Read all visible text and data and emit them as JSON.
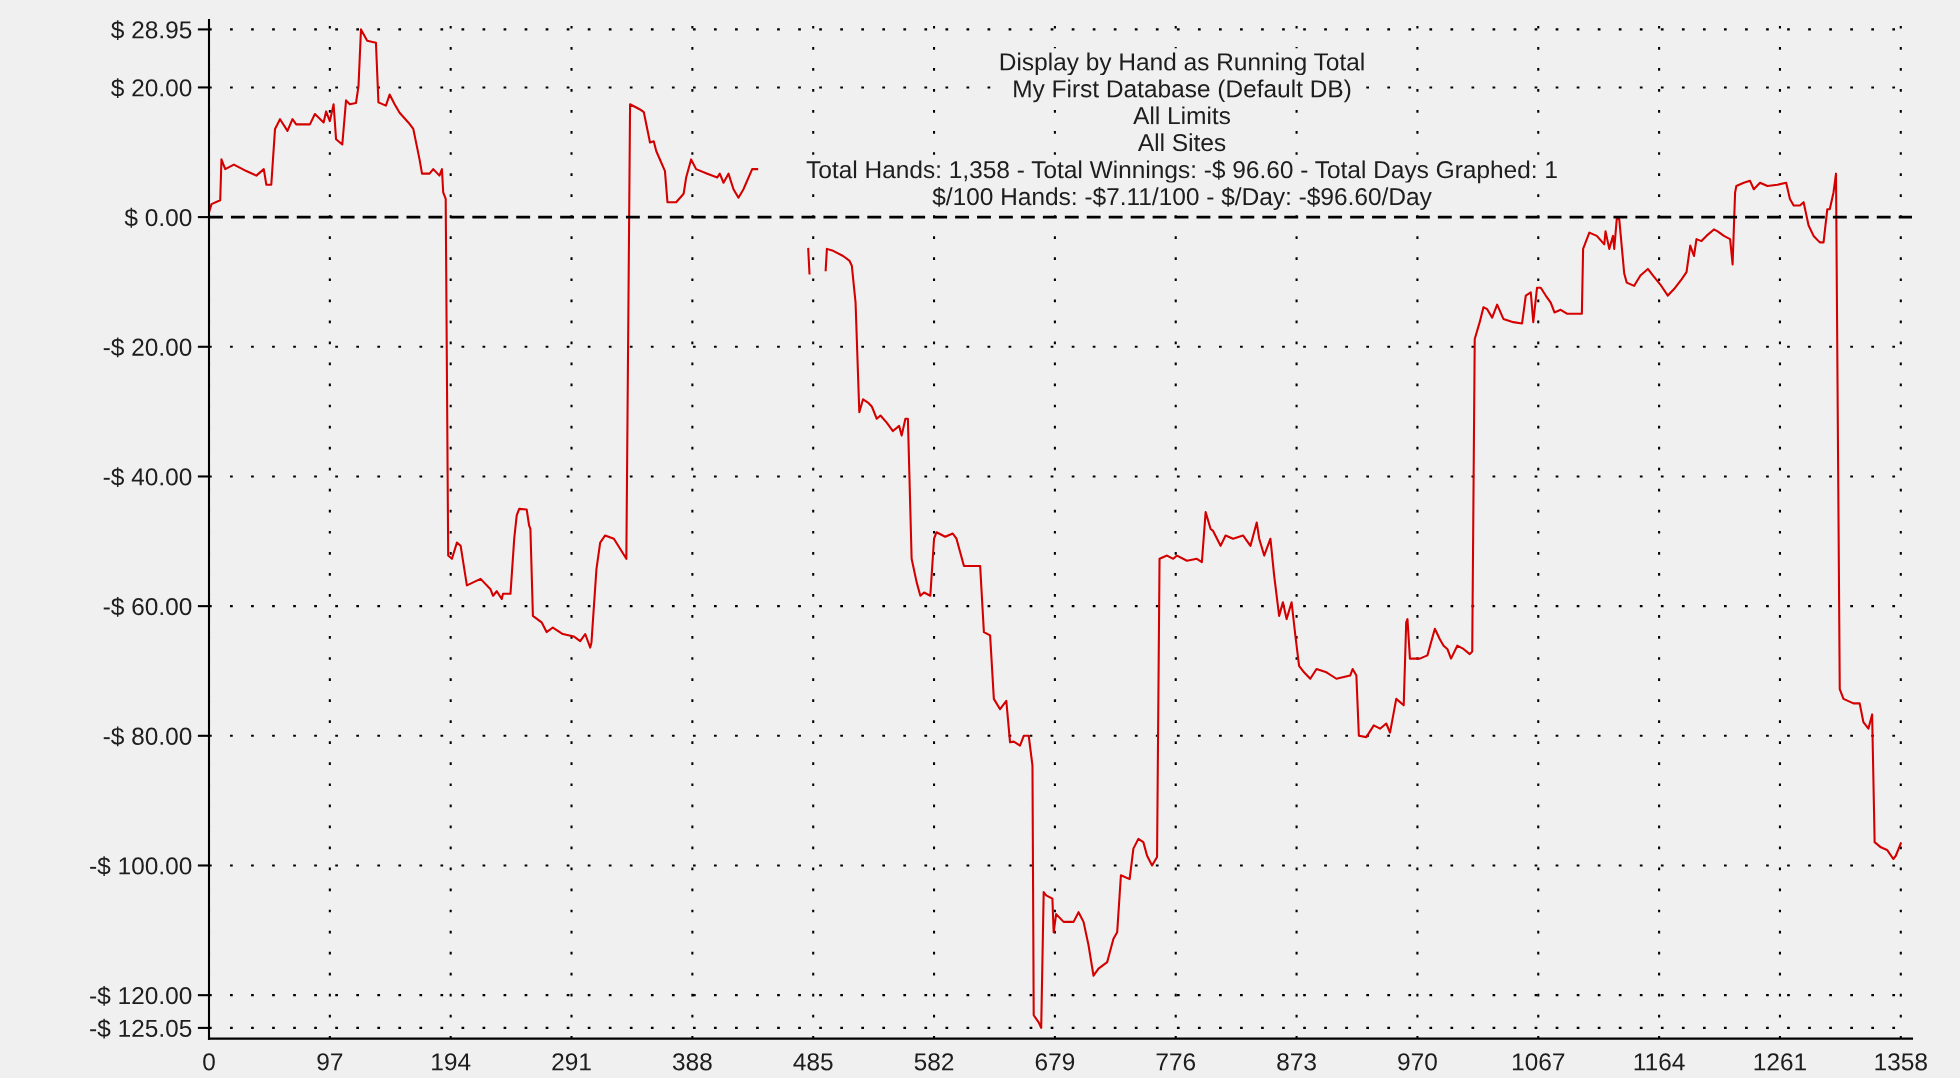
{
  "chart_data": {
    "type": "line",
    "title": "Display by Hand as Running Total",
    "subtitle": "My First Database (Default DB)",
    "annotations": [
      "All Limits",
      "All Sites",
      "Total Hands: 1,358 - Total Winnings: -$ 96.60 - Total Days Graphed: 1",
      "$/100 Hands: -$7.11/100 - $/Day: -$96.60/Day"
    ],
    "x": [
      0,
      2,
      9,
      10,
      13,
      20,
      30,
      38,
      44,
      46,
      50,
      53,
      57,
      63,
      67,
      70,
      81,
      85,
      92,
      94,
      97,
      100,
      102,
      107,
      110,
      113,
      118,
      120,
      122,
      127,
      134,
      136,
      142,
      145,
      149,
      153,
      160,
      164,
      169,
      171,
      177,
      180,
      185,
      187,
      188,
      190,
      192,
      195,
      199,
      202,
      207,
      218,
      226,
      228,
      231,
      235,
      236,
      242,
      245,
      247,
      249,
      255,
      257,
      258,
      260,
      267,
      271,
      276,
      284,
      293,
      298,
      302,
      306,
      307,
      311,
      314,
      318,
      325,
      335,
      338,
      346,
      349,
      354,
      357,
      359,
      366,
      368,
      375,
      381,
      383,
      387,
      391,
      400,
      408,
      410,
      413,
      417,
      421,
      425,
      429,
      436,
      440,
      460,
      481,
      482,
      489,
      495,
      496,
      501,
      509,
      514,
      516,
      519,
      522,
      525,
      529,
      532,
      536,
      539,
      544,
      549,
      554,
      556,
      559,
      561,
      564,
      568,
      571,
      574,
      579,
      582,
      584,
      591,
      597,
      600,
      606,
      619,
      622,
      627,
      630,
      635,
      640,
      643,
      646,
      651,
      654,
      658,
      661,
      662,
      666,
      668,
      670,
      672,
      677,
      678,
      680,
      686,
      694,
      698,
      702,
      706,
      710,
      714,
      721,
      726,
      729,
      732,
      739,
      742,
      746,
      750,
      753,
      757,
      761,
      763,
      769,
      774,
      777,
      785,
      793,
      797,
      800,
      804,
      806,
      812,
      816,
      822,
      830,
      836,
      841,
      843,
      847,
      852,
      855,
      859,
      862,
      865,
      869,
      872,
      875,
      879,
      884,
      889,
      897,
      905,
      916,
      918,
      921,
      923,
      929,
      935,
      940,
      945,
      948,
      953,
      959,
      961,
      962,
      964,
      972,
      978,
      984,
      988,
      991,
      994,
      997,
      1002,
      1007,
      1012,
      1014,
      1016,
      1020,
      1023,
      1026,
      1030,
      1034,
      1039,
      1047,
      1054,
      1057,
      1061,
      1063,
      1066,
      1069,
      1073,
      1077,
      1080,
      1085,
      1090,
      1102,
      1103,
      1108,
      1114,
      1120,
      1121,
      1124,
      1127,
      1128,
      1130,
      1132,
      1136,
      1138,
      1144,
      1149,
      1155,
      1159,
      1165,
      1171,
      1176,
      1182,
      1186,
      1189,
      1192,
      1194,
      1198,
      1202,
      1208,
      1211,
      1216,
      1221,
      1223,
      1225,
      1226,
      1232,
      1237,
      1240,
      1245,
      1251,
      1259,
      1266,
      1269,
      1272,
      1277,
      1280,
      1284,
      1288,
      1293,
      1296,
      1299,
      1301,
      1304,
      1306,
      1309,
      1312,
      1320,
      1325,
      1328,
      1332,
      1335,
      1337,
      1342,
      1347,
      1352,
      1354,
      1358
    ],
    "values": [
      0.7,
      2.0,
      2.6,
      8.9,
      7.4,
      8.1,
      7.1,
      6.4,
      7.4,
      5.0,
      5.0,
      13.6,
      15.1,
      13.3,
      15.1,
      14.3,
      14.3,
      15.9,
      14.6,
      16.3,
      14.8,
      17.4,
      12.0,
      11.2,
      18.0,
      17.4,
      17.6,
      20.2,
      28.95,
      27.2,
      26.9,
      17.7,
      17.2,
      18.9,
      17.4,
      16.1,
      14.6,
      13.6,
      8.9,
      6.7,
      6.7,
      7.4,
      6.4,
      7.4,
      3.8,
      2.8,
      -52.2,
      -52.7,
      -50.2,
      -50.7,
      -56.8,
      -55.8,
      -57.4,
      -58.4,
      -57.7,
      -58.9,
      -58.1,
      -58.1,
      -49.6,
      -46.0,
      -45.0,
      -45.1,
      -47.6,
      -48.1,
      -61.5,
      -62.5,
      -64.0,
      -63.3,
      -64.3,
      -64.7,
      -65.4,
      -64.3,
      -66.4,
      -65.6,
      -54.3,
      -50.2,
      -49.1,
      -49.6,
      -52.7,
      17.4,
      16.6,
      16.2,
      11.5,
      11.7,
      10.2,
      7.1,
      2.3,
      2.3,
      3.6,
      6.1,
      8.9,
      7.4,
      6.7,
      6.1,
      6.7,
      5.3,
      6.7,
      4.3,
      3.0,
      4.3,
      7.4,
      7.4,
      null,
      -4.9,
      -8.7,
      null,
      -8.2,
      -4.9,
      -5.2,
      -6.0,
      -6.7,
      -7.5,
      -13.2,
      -30.1,
      -28.1,
      -28.6,
      -29.2,
      -31.1,
      -30.6,
      -31.7,
      -33.0,
      -32.2,
      -33.7,
      -31.1,
      -31.1,
      -52.7,
      -56.3,
      -58.4,
      -57.9,
      -58.4,
      -49.6,
      -48.6,
      -49.3,
      -48.8,
      -49.6,
      -53.8,
      -53.8,
      -64.0,
      -64.5,
      -74.3,
      -75.9,
      -74.6,
      -81.0,
      -80.9,
      -81.5,
      -80.0,
      -80.0,
      -84.6,
      -123.1,
      -124.2,
      -125.05,
      -104.1,
      -104.6,
      -105.1,
      -110.3,
      -107.5,
      -108.7,
      -108.7,
      -107.2,
      -108.7,
      -112.3,
      -117.0,
      -115.9,
      -114.9,
      -111.3,
      -110.3,
      -101.5,
      -102.1,
      -97.4,
      -95.9,
      -96.4,
      -98.5,
      -100.0,
      -98.7,
      -52.7,
      -52.2,
      -52.7,
      -52.2,
      -53.0,
      -52.7,
      -53.2,
      -45.5,
      -48.1,
      -48.4,
      -50.7,
      -49.1,
      -49.6,
      -49.1,
      -50.7,
      -47.1,
      -49.6,
      -52.2,
      -49.6,
      -55.3,
      -61.5,
      -59.4,
      -62.0,
      -59.4,
      -64.5,
      -69.2,
      -70.2,
      -71.2,
      -69.7,
      -70.2,
      -71.2,
      -70.7,
      -69.7,
      -70.7,
      -80.0,
      -80.2,
      -78.4,
      -78.9,
      -78.1,
      -79.5,
      -74.3,
      -75.3,
      -62.5,
      -62.0,
      -68.1,
      -68.1,
      -67.6,
      -63.5,
      -65.1,
      -66.1,
      -66.6,
      -68.1,
      -66.1,
      -66.6,
      -67.4,
      -67.0,
      -18.8,
      -16.2,
      -13.9,
      -14.2,
      -15.5,
      -13.5,
      -15.7,
      -16.2,
      -16.4,
      -12.1,
      -11.6,
      -16.2,
      -10.9,
      -10.9,
      -12.1,
      -13.2,
      -14.7,
      -14.3,
      -14.9,
      -14.9,
      -4.9,
      -2.4,
      -2.9,
      -4.2,
      -2.2,
      -4.9,
      -2.9,
      -4.9,
      -0.3,
      -0.3,
      -8.7,
      -10.1,
      -10.6,
      -9.0,
      -8.0,
      -9.0,
      -10.4,
      -12.1,
      -11.1,
      -9.6,
      -8.5,
      -4.4,
      -6.0,
      -3.4,
      -3.7,
      -2.9,
      -1.9,
      -2.2,
      -2.9,
      -3.4,
      -7.3,
      3.8,
      4.8,
      5.3,
      5.6,
      4.3,
      5.3,
      4.8,
      5.0,
      5.3,
      2.8,
      1.8,
      1.8,
      2.3,
      -1.3,
      -2.9,
      -3.9,
      -3.9,
      1.2,
      1.2,
      3.8,
      6.7,
      -72.8,
      -74.3,
      -75.0,
      -75.0,
      -77.9,
      -78.9,
      -76.7,
      -96.4,
      -97.2,
      -97.6,
      -99.0,
      -98.5,
      -96.6
    ],
    "color": "#d40000",
    "xlim": [
      0,
      1367
    ],
    "ylim": [
      -126.7,
      30.4
    ],
    "xticks": [
      0,
      97,
      194,
      291,
      388,
      485,
      582,
      679,
      776,
      873,
      970,
      1067,
      1164,
      1261,
      1358
    ],
    "yticks": [
      {
        "value": 28.95,
        "label": "$ 28.95"
      },
      {
        "value": 20,
        "label": "$ 20.00"
      },
      {
        "value": 0,
        "label": "$ 0.00"
      },
      {
        "value": -20,
        "label": "-$ 20.00"
      },
      {
        "value": -40,
        "label": "-$ 40.00"
      },
      {
        "value": -60,
        "label": "-$ 60.00"
      },
      {
        "value": -80,
        "label": "-$ 80.00"
      },
      {
        "value": -100,
        "label": "-$ 100.00"
      },
      {
        "value": -120,
        "label": "-$ 120.00"
      },
      {
        "value": -125.05,
        "label": "-$ 125.05"
      }
    ],
    "grid": true,
    "ref_lines": [
      {
        "axis": "y",
        "value": 0,
        "color": "#000000",
        "line_style": "dashed"
      }
    ]
  }
}
